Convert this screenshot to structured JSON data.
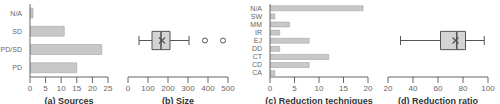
{
  "chart_data": [
    {
      "type": "bar",
      "orientation": "horizontal",
      "xlabel": "(a) Sources",
      "categories": [
        "N/A",
        "SD",
        "PD/SD",
        "PD"
      ],
      "values": [
        1,
        11,
        23,
        15
      ],
      "color": "#c8c8c8",
      "xlim": [
        0,
        25
      ],
      "xticks": [
        0,
        5,
        10,
        15,
        20,
        25
      ]
    },
    {
      "type": "box",
      "xlabel": "(b) Size",
      "q1": 120,
      "median": 165,
      "q3": 210,
      "whisker_low": 55,
      "whisker_high": 305,
      "outliers": [
        385,
        475
      ],
      "mean": 170,
      "color": "#555555",
      "xlim": [
        0,
        500
      ],
      "xticks": [
        0,
        100,
        200,
        300,
        400,
        500
      ]
    },
    {
      "type": "bar",
      "orientation": "horizontal",
      "xlabel": "(c) Reduction techniques",
      "categories": [
        "N/A",
        "SW",
        "MM",
        "IR",
        "EJ",
        "DD",
        "CT",
        "CD",
        "CA"
      ],
      "values": [
        19,
        1,
        4,
        2,
        8,
        2,
        12,
        8,
        1
      ],
      "color": "#c8c8c8",
      "xlim": [
        0,
        20
      ],
      "xticks": [
        0,
        5,
        10,
        15,
        20
      ]
    },
    {
      "type": "box",
      "xlabel": "(d) Reduction ratio",
      "q1": 62,
      "median": 75,
      "q3": 82,
      "whisker_low": 30,
      "whisker_high": 97,
      "mean": 74,
      "color": "#555555",
      "xlim": [
        20,
        100
      ],
      "xticks": [
        20,
        40,
        60,
        80,
        100
      ]
    }
  ]
}
